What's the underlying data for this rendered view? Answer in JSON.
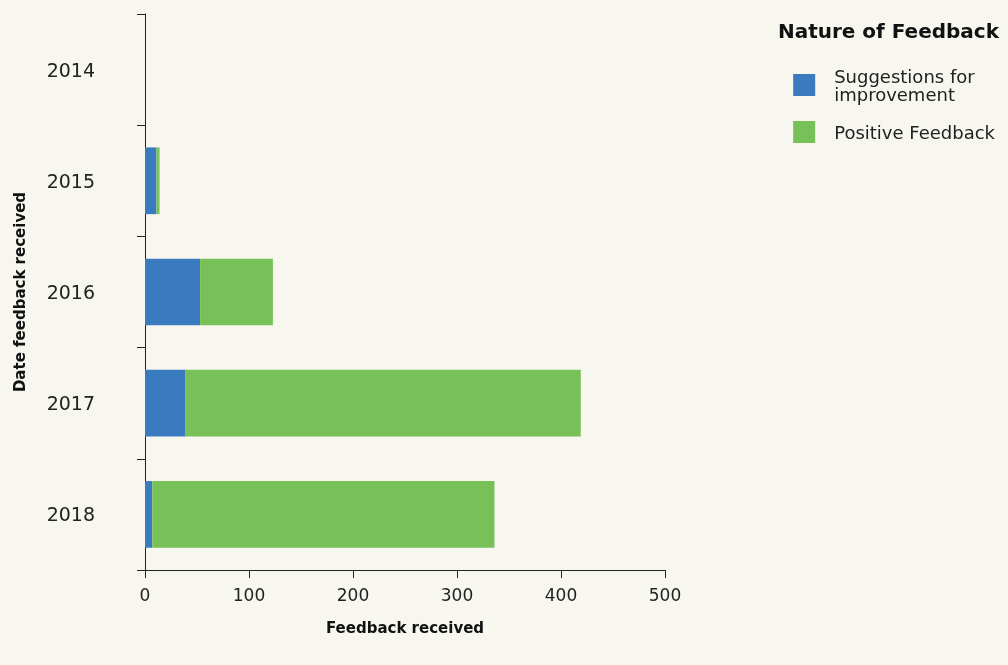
{
  "chart_data": {
    "type": "bar",
    "orientation": "horizontal",
    "stacked": true,
    "xlabel": "Feedback received",
    "ylabel": "Date feedback received",
    "legend_title": "Nature of Feedback",
    "categories": [
      "2014",
      "2015",
      "2016",
      "2017",
      "2018"
    ],
    "series": [
      {
        "name": "Suggestions for improvement",
        "color": "#3a7bbf",
        "values": [
          0,
          11,
          53,
          39,
          7
        ]
      },
      {
        "name": "Positive Feedback",
        "color": "#78c159",
        "values": [
          0,
          3,
          70,
          380,
          329
        ]
      }
    ],
    "xlim": [
      0,
      500
    ],
    "xticks": [
      0,
      100,
      200,
      300,
      400,
      500
    ],
    "grid": false,
    "legend": "top right"
  }
}
